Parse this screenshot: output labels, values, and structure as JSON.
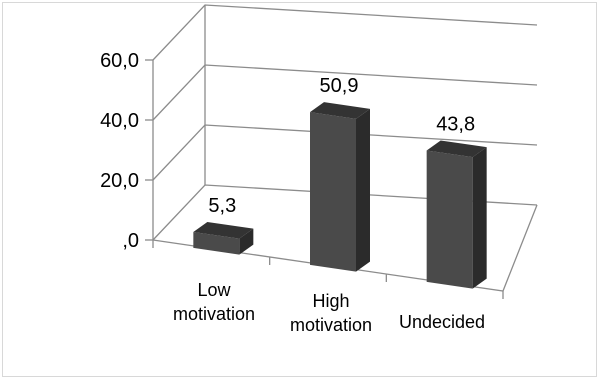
{
  "chart_data": {
    "type": "bar",
    "style": "3d-column",
    "categories": [
      "Low motivation",
      "High motivation",
      "Undecided"
    ],
    "category_lines": [
      [
        "Low",
        "motivation"
      ],
      [
        "High",
        "motivation"
      ],
      [
        "Undecided"
      ]
    ],
    "values": [
      5.3,
      50.9,
      43.8
    ],
    "data_labels": [
      "5,3",
      "50,9",
      "43,8"
    ],
    "y_ticks": [
      0,
      20,
      40,
      60
    ],
    "y_tick_labels": [
      ",0",
      "20,0",
      "40,0",
      "60,0"
    ],
    "ylim": [
      0,
      60
    ],
    "grid": true,
    "legend": "none",
    "title": "",
    "xlabel": "",
    "ylabel": "",
    "colors": {
      "bar_front": "#4a4a4a",
      "bar_side": "#2b2b2b",
      "bar_top": "#333333",
      "gridline": "#8c8c8c",
      "axis": "#8c8c8c"
    }
  }
}
